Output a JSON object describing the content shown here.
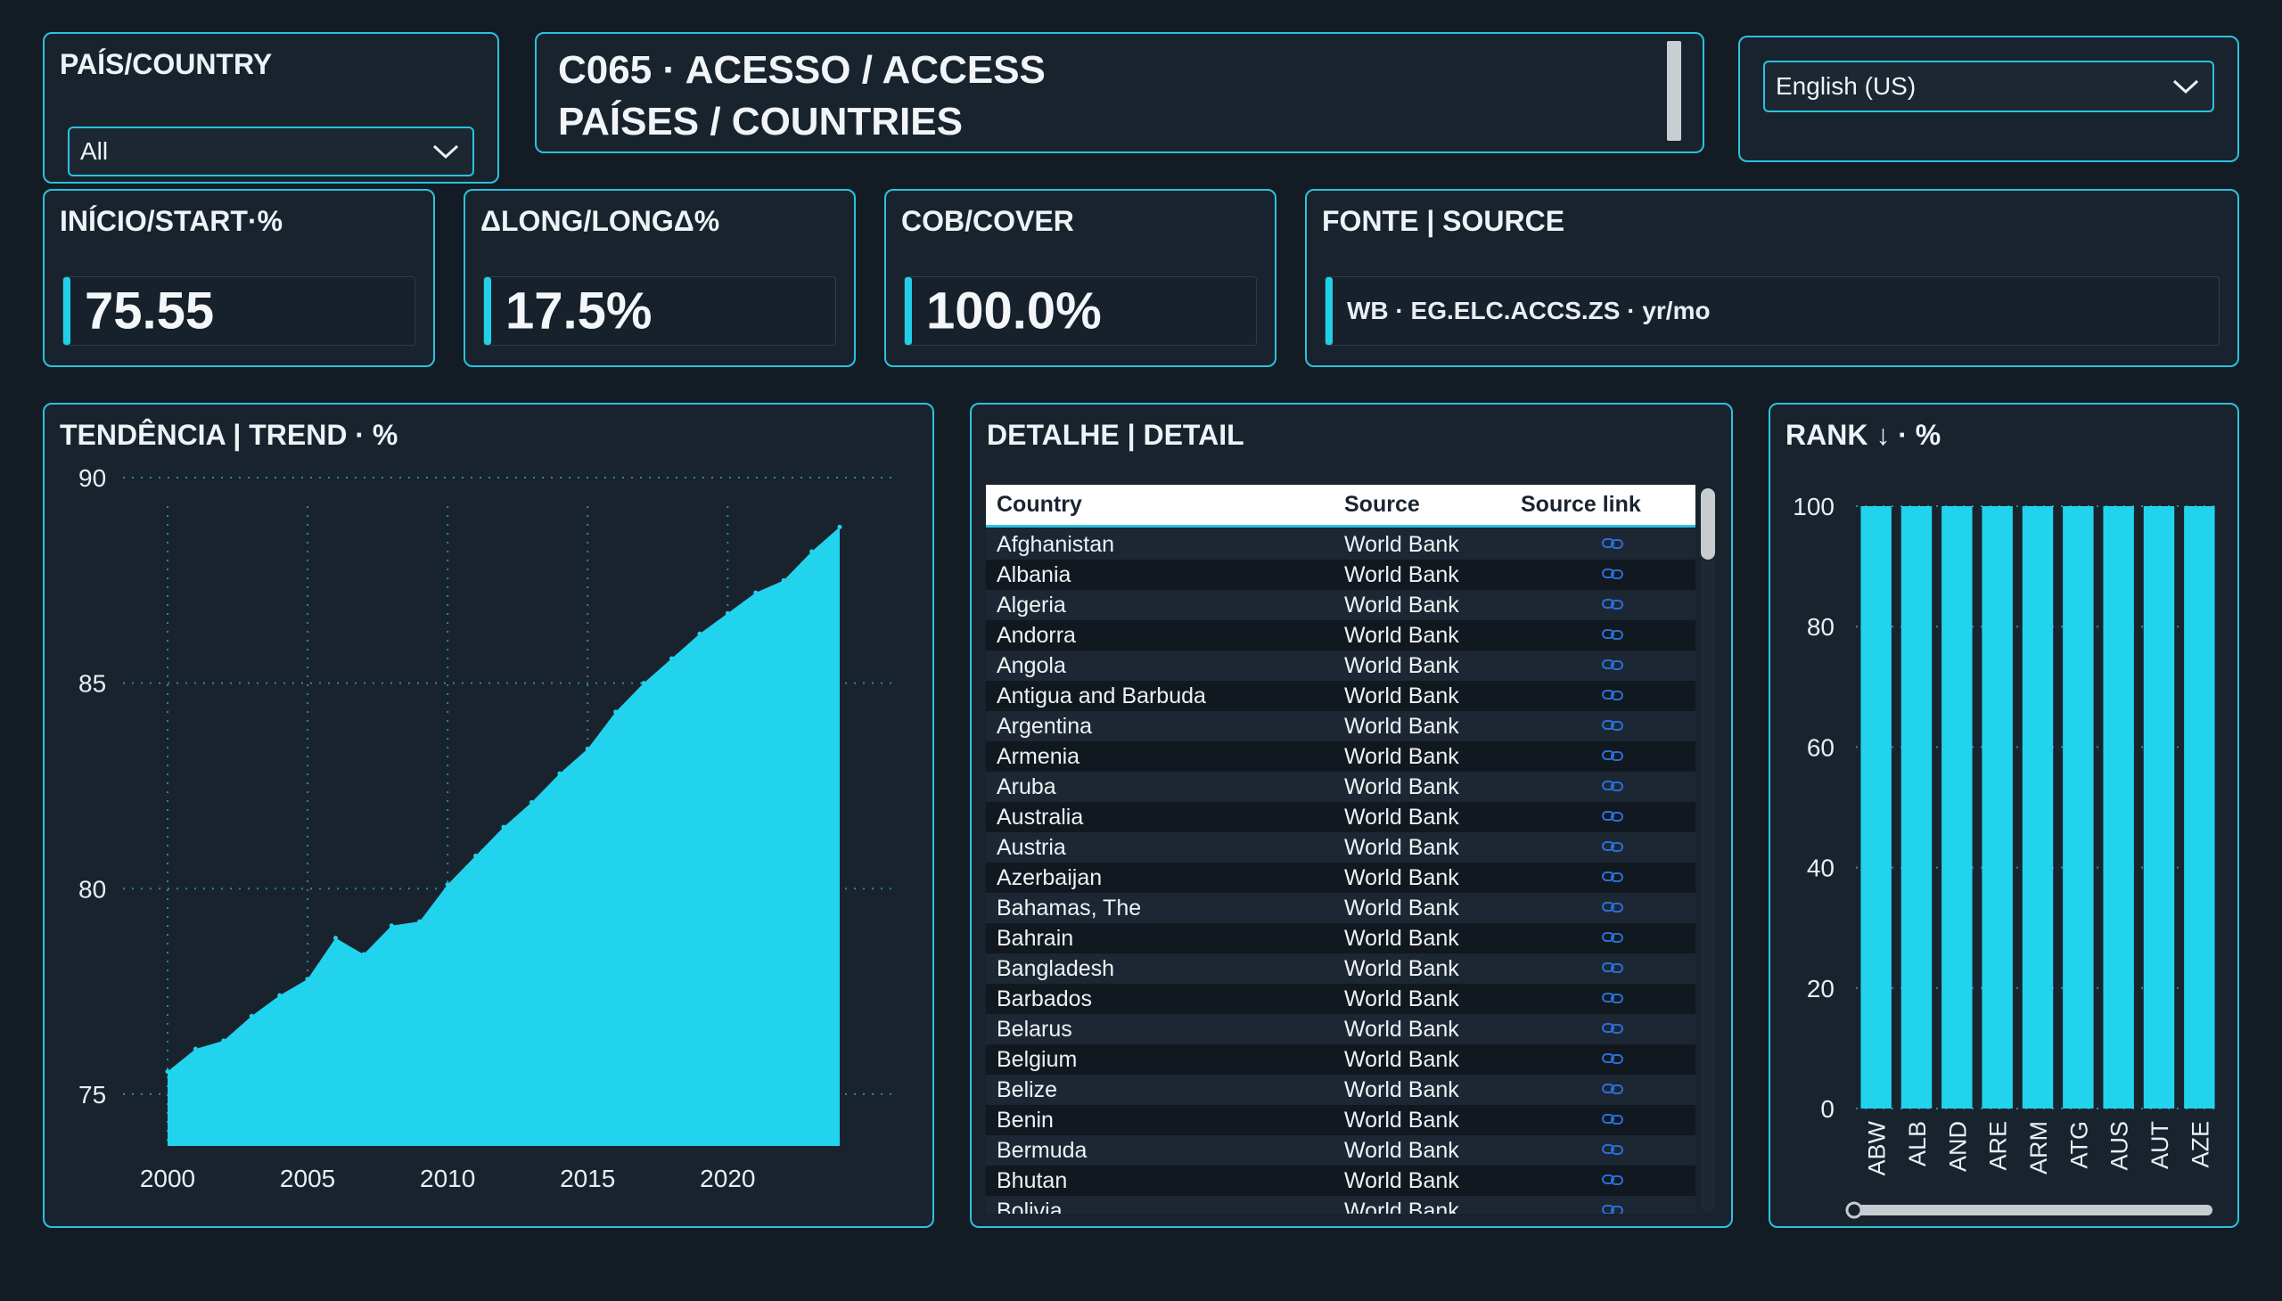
{
  "slicer": {
    "title": "PAÍS/COUNTRY",
    "selected": "All"
  },
  "header": {
    "line1": "C065 · ACESSO / ACCESS",
    "line2": "PAÍSES / COUNTRIES"
  },
  "language": {
    "selected": "English (US)"
  },
  "kpis": [
    {
      "title": "INÍCIO/START·%",
      "value": "75.55"
    },
    {
      "title": "ΔLONG/LONGΔ%",
      "value": "17.5%"
    },
    {
      "title": "COB/COVER",
      "value": "100.0%"
    }
  ],
  "source": {
    "title": "FONTE | SOURCE",
    "value": "WB · EG.ELC.ACCS.ZS · yr/mo"
  },
  "trend": {
    "title": "TENDÊNCIA | TREND · %",
    "chart_data": {
      "type": "area",
      "x": [
        2000,
        2001,
        2002,
        2003,
        2004,
        2005,
        2006,
        2007,
        2008,
        2009,
        2010,
        2011,
        2012,
        2013,
        2014,
        2015,
        2016,
        2017,
        2018,
        2019,
        2020,
        2021,
        2022,
        2023,
        2024
      ],
      "values": [
        75.55,
        76.1,
        76.3,
        76.9,
        77.4,
        77.8,
        78.8,
        78.4,
        79.1,
        79.2,
        80.1,
        80.8,
        81.5,
        82.1,
        82.8,
        83.4,
        84.3,
        85.0,
        85.6,
        86.2,
        86.7,
        87.2,
        87.5,
        88.2,
        88.8
      ],
      "ylim": [
        74,
        90
      ],
      "yticks": [
        75,
        80,
        85,
        90
      ],
      "xticks": [
        2000,
        2005,
        2010,
        2015,
        2020
      ],
      "grid": true,
      "color": "#22d3ee"
    }
  },
  "detail": {
    "title": "DETALHE | DETAIL",
    "columns": [
      "Country",
      "Source",
      "Source link"
    ],
    "rows": [
      [
        "Afghanistan",
        "World Bank"
      ],
      [
        "Albania",
        "World Bank"
      ],
      [
        "Algeria",
        "World Bank"
      ],
      [
        "Andorra",
        "World Bank"
      ],
      [
        "Angola",
        "World Bank"
      ],
      [
        "Antigua and Barbuda",
        "World Bank"
      ],
      [
        "Argentina",
        "World Bank"
      ],
      [
        "Armenia",
        "World Bank"
      ],
      [
        "Aruba",
        "World Bank"
      ],
      [
        "Australia",
        "World Bank"
      ],
      [
        "Austria",
        "World Bank"
      ],
      [
        "Azerbaijan",
        "World Bank"
      ],
      [
        "Bahamas, The",
        "World Bank"
      ],
      [
        "Bahrain",
        "World Bank"
      ],
      [
        "Bangladesh",
        "World Bank"
      ],
      [
        "Barbados",
        "World Bank"
      ],
      [
        "Belarus",
        "World Bank"
      ],
      [
        "Belgium",
        "World Bank"
      ],
      [
        "Belize",
        "World Bank"
      ],
      [
        "Benin",
        "World Bank"
      ],
      [
        "Bermuda",
        "World Bank"
      ],
      [
        "Bhutan",
        "World Bank"
      ],
      [
        "Bolivia",
        "World Bank"
      ]
    ],
    "link_icon": "link-icon"
  },
  "rank": {
    "title": "RANK ↓ · %",
    "chart_data": {
      "type": "bar",
      "categories": [
        "ABW",
        "ALB",
        "AND",
        "ARE",
        "ARM",
        "ATG",
        "AUS",
        "AUT",
        "AZE"
      ],
      "values": [
        100,
        100,
        100,
        100,
        100,
        100,
        100,
        100,
        100
      ],
      "ylim": [
        0,
        100
      ],
      "yticks": [
        0,
        20,
        40,
        60,
        80,
        100
      ],
      "grid": true,
      "color": "#22d3ee"
    }
  }
}
